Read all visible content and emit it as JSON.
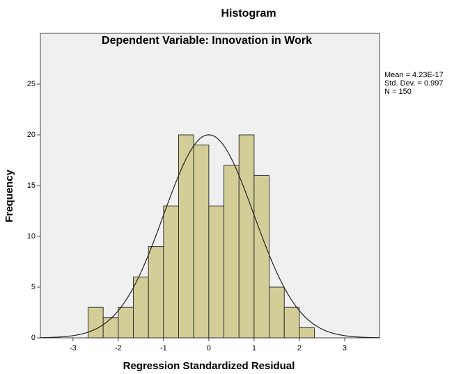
{
  "chart_data": {
    "type": "histogram",
    "title": "Histogram",
    "subtitle": "Dependent Variable: Innovation in Work",
    "x_label": "Regression Standardized Residual",
    "y_label": "Frequency",
    "bins": [
      -2.667,
      -2.333,
      -2,
      -1.667,
      -1.333,
      -1,
      -0.667,
      -0.333,
      0,
      0.333,
      0.667,
      1,
      1.333,
      1.667,
      2,
      2.333
    ],
    "values": [
      3,
      2,
      3,
      6,
      9,
      13,
      20,
      19,
      13,
      17,
      20,
      16,
      5,
      3,
      1
    ],
    "color": "#d3ce97",
    "xlim": [
      -3.72,
      3.77
    ],
    "xticks": [
      -3,
      -2,
      -1,
      0,
      1,
      2,
      3
    ],
    "ylim": [
      0,
      30
    ],
    "yticks": [
      0,
      5,
      10,
      15,
      20,
      25
    ],
    "stats": {
      "mean": {
        "value": 4.23e-17,
        "label": "Mean = 4.23E-17"
      },
      "std": {
        "value": 0.997,
        "label": "Std. Dev. = 0.997"
      },
      "n": {
        "value": 150,
        "label": "N = 150"
      }
    }
  }
}
